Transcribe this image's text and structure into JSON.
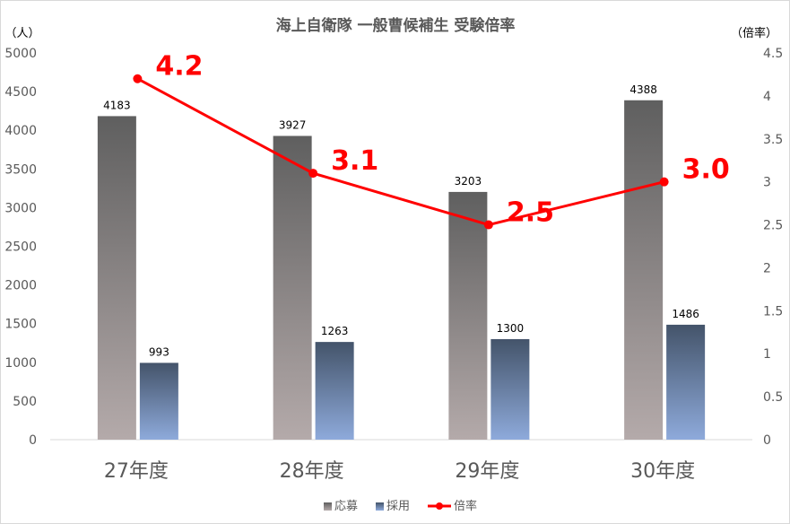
{
  "chart_data": {
    "type": "bar",
    "title": "海上自衛隊 一般曹候補生 受験倍率",
    "y_unit_left": "（人）",
    "y_unit_right": "（倍率）",
    "categories": [
      "27年度",
      "28年度",
      "29年度",
      "30年度"
    ],
    "ylim": [
      0,
      5000
    ],
    "y_ticks": [
      "5000",
      "4500",
      "4000",
      "3500",
      "3000",
      "2500",
      "2000",
      "1500",
      "1000",
      "500",
      "0"
    ],
    "y2lim": [
      0,
      4.5
    ],
    "y2_ticks": [
      "4.5",
      "4",
      "3.5",
      "3",
      "2.5",
      "2",
      "1.5",
      "1",
      "0.5",
      "0"
    ],
    "series": [
      {
        "name": "応募",
        "kind": "bar",
        "axis": "left",
        "values": [
          4183,
          3927,
          3203,
          4388
        ],
        "labels": [
          "4183",
          "3927",
          "3203",
          "4388"
        ],
        "color_top": "#5f5f5f",
        "color_bottom": "#b4aaaa"
      },
      {
        "name": "採用",
        "kind": "bar",
        "axis": "left",
        "values": [
          993,
          1263,
          1300,
          1486
        ],
        "labels": [
          "993",
          "1263",
          "1300",
          "1486"
        ],
        "color_top": "#44546a",
        "color_bottom": "#8eaadb"
      },
      {
        "name": "倍率",
        "kind": "line",
        "axis": "right",
        "values": [
          4.2,
          3.1,
          2.5,
          3.0
        ],
        "labels": [
          "4.2",
          "3.1",
          "2.5",
          "3.0"
        ],
        "color": "#ff0000"
      }
    ],
    "legend_position": "bottom",
    "grid": false
  }
}
